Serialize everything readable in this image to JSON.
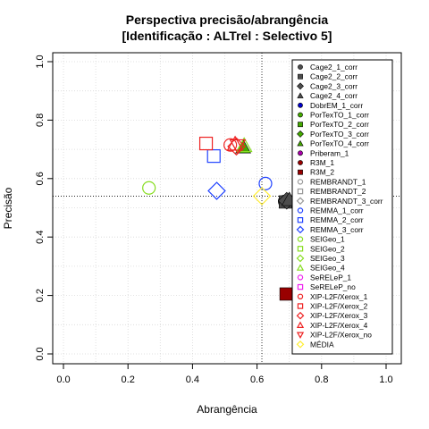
{
  "chart_data": {
    "type": "scatter",
    "title": "Perspectiva precisão/abrangência",
    "subtitle": "[Identificação : ALTrel : Selectivo 5]",
    "xlabel": "Abrangência",
    "ylabel": "Precisão",
    "xlim": [
      0,
      1
    ],
    "ylim": [
      0,
      1
    ],
    "x_ticks": [
      "0.0",
      "0.2",
      "0.4",
      "0.6",
      "0.8",
      "1.0"
    ],
    "y_ticks": [
      "0.0",
      "0.2",
      "0.4",
      "0.6",
      "0.8",
      "1.0"
    ],
    "grid": true,
    "legend_position": "right",
    "reference_lines": {
      "x": 0.615,
      "y": 0.54
    },
    "series": [
      {
        "name": "Cage2_1_corr",
        "color": "#4d4d4d",
        "marker": "circle-filled",
        "points": [
          [
            0.685,
            0.522
          ]
        ]
      },
      {
        "name": "Cage2_2_corr",
        "color": "#4d4d4d",
        "marker": "square-filled",
        "points": [
          [
            0.688,
            0.52
          ]
        ]
      },
      {
        "name": "Cage2_3_corr",
        "color": "#4d4d4d",
        "marker": "diamond-filled",
        "points": [
          [
            0.692,
            0.524
          ]
        ]
      },
      {
        "name": "Cage2_4_corr",
        "color": "#4d4d4d",
        "marker": "triangle-filled",
        "points": [
          [
            0.7,
            0.528
          ]
        ]
      },
      {
        "name": "DobrEM_1_corr",
        "color": "#0000cc",
        "marker": "circle-filled",
        "points": []
      },
      {
        "name": "PorTexTO_1_corr",
        "color": "#44aa00",
        "marker": "circle-filled",
        "points": []
      },
      {
        "name": "PorTexTO_2_corr",
        "color": "#44aa00",
        "marker": "square-filled",
        "points": []
      },
      {
        "name": "PorTexTO_3_corr",
        "color": "#44aa00",
        "marker": "diamond-filled",
        "points": []
      },
      {
        "name": "PorTexTO_4_corr",
        "color": "#44aa00",
        "marker": "triangle-filled",
        "points": [
          [
            0.557,
            0.708
          ]
        ]
      },
      {
        "name": "Priberam_1",
        "color": "#aa00aa",
        "marker": "circle-filled",
        "points": []
      },
      {
        "name": "R3M_1",
        "color": "#990000",
        "marker": "circle-filled",
        "points": []
      },
      {
        "name": "R3M_2",
        "color": "#990000",
        "marker": "square-filled",
        "points": [
          [
            0.69,
            0.205
          ]
        ]
      },
      {
        "name": "REMBRANDT_1",
        "color": "#999999",
        "marker": "circle-open",
        "points": []
      },
      {
        "name": "REMBRANDT_2",
        "color": "#999999",
        "marker": "square-open",
        "points": []
      },
      {
        "name": "REMBRANDT_3_corr",
        "color": "#999999",
        "marker": "diamond-open",
        "points": []
      },
      {
        "name": "REMMA_1_corr",
        "color": "#2244ff",
        "marker": "circle-open",
        "points": [
          [
            0.626,
            0.583
          ]
        ]
      },
      {
        "name": "REMMA_2_corr",
        "color": "#2244ff",
        "marker": "square-open",
        "points": [
          [
            0.466,
            0.677
          ]
        ]
      },
      {
        "name": "REMMA_3_corr",
        "color": "#2244ff",
        "marker": "diamond-open",
        "points": [
          [
            0.475,
            0.558
          ]
        ]
      },
      {
        "name": "SEIGeo_1",
        "color": "#88dd22",
        "marker": "circle-open",
        "points": [
          [
            0.265,
            0.568
          ]
        ]
      },
      {
        "name": "SEIGeo_2",
        "color": "#88dd22",
        "marker": "square-open",
        "points": []
      },
      {
        "name": "SEIGeo_3",
        "color": "#88dd22",
        "marker": "diamond-open",
        "points": []
      },
      {
        "name": "SEIGeo_4",
        "color": "#88dd22",
        "marker": "triangle-open",
        "points": [
          [
            0.56,
            0.713
          ]
        ]
      },
      {
        "name": "SeRELeP_1",
        "color": "#ee22ee",
        "marker": "circle-open",
        "points": []
      },
      {
        "name": "SeRELeP_no",
        "color": "#ee22ee",
        "marker": "square-open",
        "points": []
      },
      {
        "name": "XIP-L2F/Xerox_1",
        "color": "#ee2222",
        "marker": "circle-open",
        "points": [
          [
            0.517,
            0.715
          ]
        ]
      },
      {
        "name": "XIP-L2F/Xerox_2",
        "color": "#ee2222",
        "marker": "square-open",
        "points": [
          [
            0.442,
            0.72
          ]
        ]
      },
      {
        "name": "XIP-L2F/Xerox_3",
        "color": "#ee2222",
        "marker": "diamond-open",
        "points": [
          [
            0.536,
            0.71
          ]
        ]
      },
      {
        "name": "XIP-L2F/Xerox_4",
        "color": "#ee2222",
        "marker": "triangle-open",
        "points": [
          [
            0.532,
            0.718
          ]
        ]
      },
      {
        "name": "XIP-L2F/Xerox_no",
        "color": "#ee2222",
        "marker": "triangle-down-open",
        "points": [
          [
            0.54,
            0.712
          ]
        ]
      },
      {
        "name": "MÉDIA",
        "color": "#ffee33",
        "marker": "diamond-open",
        "points": [
          [
            0.615,
            0.54
          ]
        ]
      }
    ]
  }
}
